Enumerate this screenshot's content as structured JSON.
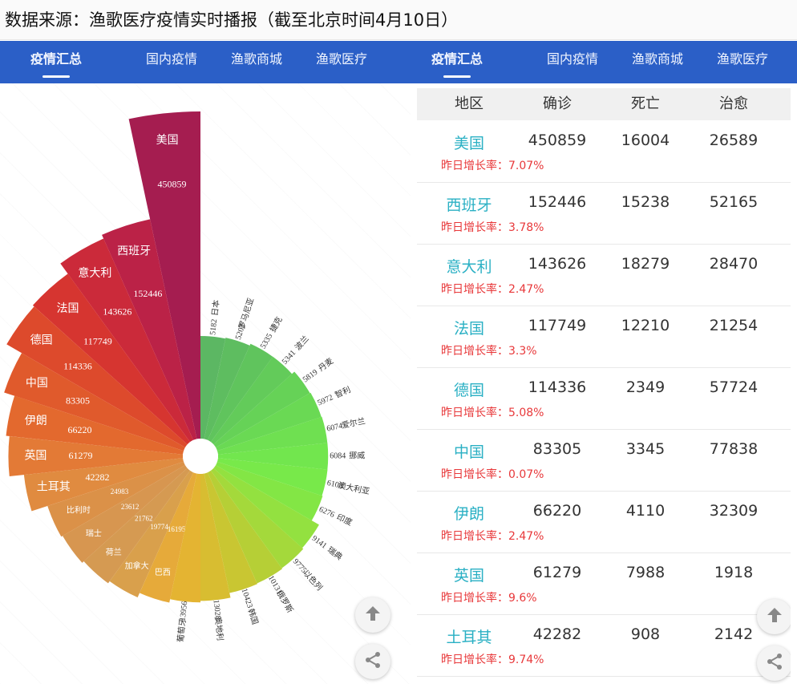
{
  "header": {
    "title": "数据来源：渔歌医疗疫情实时播报（截至北京时间4月10日）"
  },
  "nav_left": [
    {
      "label": "疫情汇总",
      "active": true
    },
    {
      "label": "国内疫情",
      "active": false
    },
    {
      "label": "渔歌商城",
      "active": false
    },
    {
      "label": "渔歌医疗",
      "active": false
    }
  ],
  "nav_right": [
    {
      "label": "疫情汇总",
      "active": true
    },
    {
      "label": "国内疫情",
      "active": false
    },
    {
      "label": "渔歌商城",
      "active": false
    },
    {
      "label": "渔歌医疗",
      "active": false
    }
  ],
  "chart_data": {
    "type": "bar",
    "subtype": "nightingale-rose",
    "categories": [
      "美国",
      "西班牙",
      "意大利",
      "法国",
      "德国",
      "中国",
      "伊朗",
      "英国",
      "土耳其",
      "比利时",
      "瑞士",
      "荷兰",
      "加拿大",
      "巴西",
      "葡萄牙",
      "奥地利",
      "韩国",
      "俄罗斯",
      "以色列",
      "瑞典",
      "印度",
      "澳大利亚",
      "挪威",
      "爱尔兰",
      "智利",
      "丹麦",
      "波兰",
      "捷克",
      "罗马尼亚",
      "日本"
    ],
    "values": [
      450859,
      152446,
      143626,
      117749,
      114336,
      83305,
      66220,
      61279,
      42282,
      24983,
      23612,
      21762,
      19774,
      16195,
      13956,
      13028,
      10423,
      10131,
      9775,
      9141,
      6276,
      6108,
      6084,
      6074,
      5972,
      5819,
      5341,
      5335,
      5202,
      5182
    ],
    "colors": [
      "#a51d50",
      "#bb2247",
      "#cb2a3a",
      "#d63530",
      "#dd4a2c",
      "#e05a2c",
      "#e3692e",
      "#e37a36",
      "#e08b40",
      "#db9148",
      "#d79650",
      "#d59a52",
      "#d9a04c",
      "#e6aa3a",
      "#e4b432",
      "#d8bd31",
      "#c9c632",
      "#b6cf36",
      "#a4d93b",
      "#93e140",
      "#83e645",
      "#78e94a",
      "#72e64e",
      "#6fe051",
      "#6ad954",
      "#66d257",
      "#63cb5a",
      "#60c45d",
      "#5ebd60",
      "#5cb763"
    ]
  },
  "table": {
    "headers": [
      "地区",
      "确诊",
      "死亡",
      "治愈"
    ],
    "rate_label": "昨日增长率：",
    "rows": [
      {
        "name": "美国",
        "confirmed": "450859",
        "deaths": "16004",
        "cured": "26589",
        "rate": "7.07%"
      },
      {
        "name": "西班牙",
        "confirmed": "152446",
        "deaths": "15238",
        "cured": "52165",
        "rate": "3.78%"
      },
      {
        "name": "意大利",
        "confirmed": "143626",
        "deaths": "18279",
        "cured": "28470",
        "rate": "2.47%"
      },
      {
        "name": "法国",
        "confirmed": "117749",
        "deaths": "12210",
        "cured": "21254",
        "rate": "3.3%"
      },
      {
        "name": "德国",
        "confirmed": "114336",
        "deaths": "2349",
        "cured": "57724",
        "rate": "5.08%"
      },
      {
        "name": "中国",
        "confirmed": "83305",
        "deaths": "3345",
        "cured": "77838",
        "rate": "0.07%"
      },
      {
        "name": "伊朗",
        "confirmed": "66220",
        "deaths": "4110",
        "cured": "32309",
        "rate": "2.47%"
      },
      {
        "name": "英国",
        "confirmed": "61279",
        "deaths": "7988",
        "cured": "1918",
        "rate": "9.6%"
      },
      {
        "name": "土耳其",
        "confirmed": "42282",
        "deaths": "908",
        "cured": "2142",
        "rate": "9.74%"
      }
    ]
  },
  "icons": {
    "up": "arrow-up-icon",
    "share": "share-icon"
  }
}
